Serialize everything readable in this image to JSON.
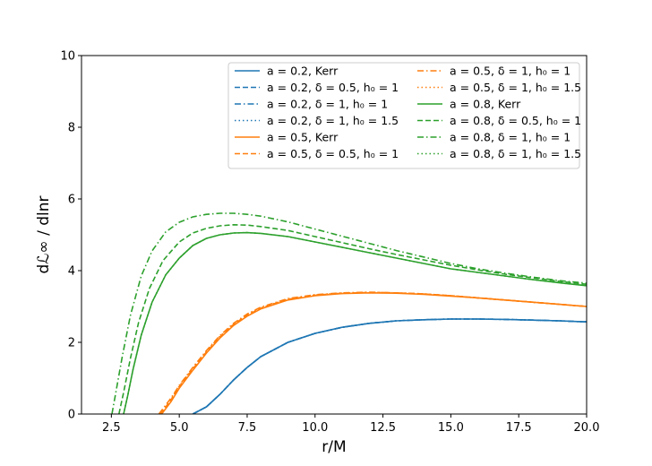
{
  "chart_data": {
    "type": "line",
    "title": "",
    "xlabel": "r/M",
    "ylabel": "dℒ∞ / dlnr",
    "xlim": [
      1.4,
      20.0
    ],
    "ylim": [
      0,
      10
    ],
    "xticks": [
      "2.5",
      "5.0",
      "7.5",
      "10.0",
      "12.5",
      "15.0",
      "17.5",
      "20.0"
    ],
    "yticks": [
      "0",
      "2",
      "4",
      "6",
      "8",
      "10"
    ],
    "grid": false,
    "legend_position": "top-right",
    "legend_columns": 2,
    "series": [
      {
        "name": "a = 0.2, Kerr",
        "color": "#1f77b4",
        "style": "solid",
        "x": [
          5.5,
          6.0,
          6.5,
          7.0,
          7.5,
          8.0,
          9.0,
          10.0,
          11.0,
          12.0,
          13.0,
          14.0,
          15.0,
          16.0,
          17.0,
          18.0,
          19.0,
          20.0
        ],
        "y": [
          0.0,
          0.2,
          0.55,
          0.95,
          1.3,
          1.6,
          2.0,
          2.25,
          2.42,
          2.53,
          2.6,
          2.63,
          2.65,
          2.65,
          2.64,
          2.62,
          2.6,
          2.57
        ]
      },
      {
        "name": "a = 0.2, δ = 0.5, h₀ = 1",
        "color": "#1f77b4",
        "style": "dashed",
        "x": [
          5.5,
          6.0,
          6.5,
          7.0,
          7.5,
          8.0,
          9.0,
          10.0,
          11.0,
          12.0,
          13.0,
          14.0,
          15.0,
          16.0,
          17.0,
          18.0,
          19.0,
          20.0
        ],
        "y": [
          0.0,
          0.2,
          0.55,
          0.95,
          1.3,
          1.6,
          2.0,
          2.25,
          2.42,
          2.53,
          2.6,
          2.63,
          2.65,
          2.65,
          2.64,
          2.62,
          2.6,
          2.57
        ]
      },
      {
        "name": "a = 0.2, δ = 1, h₀ = 1",
        "color": "#1f77b4",
        "style": "dashdot",
        "x": [
          5.5,
          6.0,
          6.5,
          7.0,
          7.5,
          8.0,
          9.0,
          10.0,
          11.0,
          12.0,
          13.0,
          14.0,
          15.0,
          16.0,
          17.0,
          18.0,
          19.0,
          20.0
        ],
        "y": [
          0.0,
          0.2,
          0.55,
          0.95,
          1.3,
          1.6,
          2.0,
          2.25,
          2.42,
          2.53,
          2.6,
          2.63,
          2.65,
          2.65,
          2.64,
          2.62,
          2.6,
          2.57
        ]
      },
      {
        "name": "a = 0.2, δ = 1, h₀ = 1.5",
        "color": "#1f77b4",
        "style": "dotted",
        "x": [
          5.5,
          6.0,
          6.5,
          7.0,
          7.5,
          8.0,
          9.0,
          10.0,
          11.0,
          12.0,
          13.0,
          14.0,
          15.0,
          16.0,
          17.0,
          18.0,
          19.0,
          20.0
        ],
        "y": [
          0.0,
          0.2,
          0.55,
          0.95,
          1.3,
          1.6,
          2.0,
          2.25,
          2.42,
          2.53,
          2.6,
          2.63,
          2.65,
          2.65,
          2.64,
          2.62,
          2.6,
          2.57
        ]
      },
      {
        "name": "a = 0.5, Kerr",
        "color": "#ff7f0e",
        "style": "solid",
        "x": [
          4.35,
          4.7,
          5.0,
          5.5,
          6.0,
          6.5,
          7.0,
          7.5,
          8.0,
          9.0,
          10.0,
          11.0,
          12.0,
          13.0,
          14.0,
          15.0,
          16.0,
          17.0,
          18.0,
          19.0,
          20.0
        ],
        "y": [
          0.0,
          0.35,
          0.72,
          1.22,
          1.7,
          2.12,
          2.47,
          2.73,
          2.93,
          3.18,
          3.3,
          3.36,
          3.38,
          3.37,
          3.34,
          3.29,
          3.24,
          3.18,
          3.12,
          3.06,
          3.0
        ]
      },
      {
        "name": "a = 0.5, δ = 0.5, h₀ = 1",
        "color": "#ff7f0e",
        "style": "dashed",
        "x": [
          4.3,
          4.7,
          5.0,
          5.5,
          6.0,
          6.5,
          7.0,
          7.5,
          8.0,
          9.0,
          10.0,
          11.0,
          12.0,
          13.0,
          14.0,
          15.0,
          16.0,
          17.0,
          18.0,
          19.0,
          20.0
        ],
        "y": [
          0.0,
          0.4,
          0.76,
          1.26,
          1.73,
          2.15,
          2.5,
          2.76,
          2.95,
          3.2,
          3.31,
          3.37,
          3.39,
          3.38,
          3.35,
          3.3,
          3.24,
          3.18,
          3.12,
          3.06,
          3.0
        ]
      },
      {
        "name": "a = 0.5, δ = 1, h₀ = 1",
        "color": "#ff7f0e",
        "style": "dashdot",
        "x": [
          4.25,
          4.7,
          5.0,
          5.5,
          6.0,
          6.5,
          7.0,
          7.5,
          8.0,
          9.0,
          10.0,
          11.0,
          12.0,
          13.0,
          14.0,
          15.0,
          16.0,
          17.0,
          18.0,
          19.0,
          20.0
        ],
        "y": [
          0.0,
          0.45,
          0.8,
          1.3,
          1.77,
          2.19,
          2.53,
          2.79,
          2.98,
          3.22,
          3.33,
          3.38,
          3.4,
          3.38,
          3.35,
          3.3,
          3.24,
          3.18,
          3.12,
          3.06,
          3.0
        ]
      },
      {
        "name": "a = 0.5, δ = 1, h₀ = 1.5",
        "color": "#ff7f0e",
        "style": "dotted",
        "x": [
          4.3,
          4.7,
          5.0,
          5.5,
          6.0,
          6.5,
          7.0,
          7.5,
          8.0,
          9.0,
          10.0,
          11.0,
          12.0,
          13.0,
          14.0,
          15.0,
          16.0,
          17.0,
          18.0,
          19.0,
          20.0
        ],
        "y": [
          0.0,
          0.42,
          0.78,
          1.28,
          1.75,
          2.17,
          2.51,
          2.77,
          2.96,
          3.21,
          3.32,
          3.37,
          3.39,
          3.38,
          3.35,
          3.3,
          3.24,
          3.18,
          3.12,
          3.06,
          3.0
        ]
      },
      {
        "name": "a = 0.8, Kerr",
        "color": "#2ca02c",
        "style": "solid",
        "x": [
          2.95,
          3.1,
          3.3,
          3.6,
          4.0,
          4.5,
          5.0,
          5.5,
          6.0,
          6.5,
          7.0,
          7.5,
          8.0,
          9.0,
          10.0,
          11.0,
          12.0,
          13.0,
          14.0,
          15.0,
          16.0,
          17.0,
          18.0,
          19.0,
          20.0
        ],
        "y": [
          0.0,
          0.5,
          1.25,
          2.2,
          3.12,
          3.88,
          4.35,
          4.7,
          4.9,
          5.0,
          5.05,
          5.06,
          5.04,
          4.95,
          4.8,
          4.65,
          4.5,
          4.35,
          4.2,
          4.05,
          3.95,
          3.85,
          3.75,
          3.66,
          3.58
        ]
      },
      {
        "name": "a = 0.8, δ = 0.5, h₀ = 1",
        "color": "#2ca02c",
        "style": "dashed",
        "x": [
          2.78,
          2.95,
          3.2,
          3.5,
          3.9,
          4.4,
          5.0,
          5.5,
          6.0,
          6.5,
          7.0,
          7.5,
          8.0,
          9.0,
          10.0,
          11.0,
          12.0,
          13.0,
          14.0,
          15.0,
          16.0,
          17.0,
          18.0,
          19.0,
          20.0
        ],
        "y": [
          0.0,
          0.6,
          1.55,
          2.55,
          3.5,
          4.28,
          4.8,
          5.05,
          5.18,
          5.25,
          5.28,
          5.27,
          5.23,
          5.12,
          4.95,
          4.78,
          4.61,
          4.45,
          4.3,
          4.15,
          4.02,
          3.9,
          3.8,
          3.7,
          3.62
        ]
      },
      {
        "name": "a = 0.8, δ = 1, h₀ = 1",
        "color": "#2ca02c",
        "style": "dashdot",
        "x": [
          2.52,
          2.7,
          2.9,
          3.2,
          3.6,
          4.0,
          4.5,
          5.0,
          5.5,
          6.0,
          6.5,
          7.0,
          7.5,
          8.0,
          9.0,
          10.0,
          11.0,
          12.0,
          13.0,
          14.0,
          15.0,
          16.0,
          17.0,
          18.0,
          19.0,
          20.0
        ],
        "y": [
          0.0,
          0.75,
          1.6,
          2.75,
          3.85,
          4.55,
          5.08,
          5.35,
          5.5,
          5.57,
          5.6,
          5.6,
          5.57,
          5.52,
          5.36,
          5.16,
          4.96,
          4.76,
          4.56,
          4.38,
          4.2,
          4.05,
          3.93,
          3.82,
          3.72,
          3.65
        ]
      },
      {
        "name": "a = 0.8, δ = 1, h₀ = 1.5",
        "color": "#2ca02c",
        "style": "dotted",
        "x": [
          2.95,
          3.1,
          3.3,
          3.6,
          4.0,
          4.5,
          5.0,
          5.5,
          6.0,
          6.5,
          7.0,
          7.5,
          8.0,
          9.0,
          10.0,
          11.0,
          12.0,
          13.0,
          14.0,
          15.0,
          16.0,
          17.0,
          18.0,
          19.0,
          20.0
        ],
        "y": [
          0.0,
          0.5,
          1.25,
          2.2,
          3.12,
          3.88,
          4.35,
          4.7,
          4.9,
          5.0,
          5.05,
          5.06,
          5.04,
          4.95,
          4.8,
          4.65,
          4.5,
          4.35,
          4.2,
          4.05,
          3.95,
          3.85,
          3.75,
          3.66,
          3.58
        ]
      }
    ]
  }
}
